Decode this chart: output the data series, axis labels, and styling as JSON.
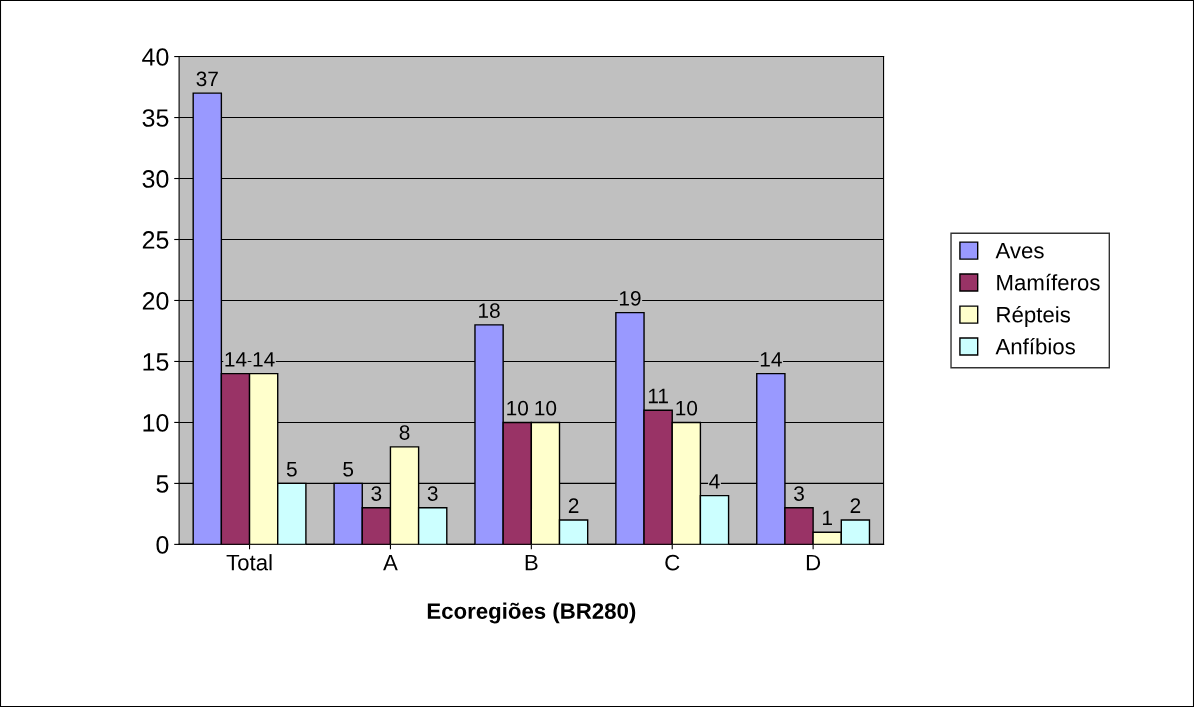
{
  "chart_data": {
    "type": "bar",
    "xlabel": "Ecoregiões (BR280)",
    "categories": [
      "Total",
      "A",
      "B",
      "C",
      "D"
    ],
    "series": [
      {
        "name": "Aves",
        "color": "#9999ff",
        "values": [
          37,
          5,
          18,
          19,
          14
        ]
      },
      {
        "name": "Mamíferos",
        "color": "#993366",
        "values": [
          14,
          3,
          10,
          11,
          3
        ]
      },
      {
        "name": "Répteis",
        "color": "#ffffcc",
        "values": [
          14,
          8,
          10,
          10,
          1
        ]
      },
      {
        "name": "Anfíbios",
        "color": "#ccffff",
        "values": [
          5,
          3,
          2,
          4,
          2
        ]
      }
    ],
    "ylim": [
      0,
      40
    ],
    "yticks": [
      0,
      5,
      10,
      15,
      20,
      25,
      30,
      35,
      40
    ],
    "grid": "y",
    "legend": "right",
    "data_labels": true
  }
}
